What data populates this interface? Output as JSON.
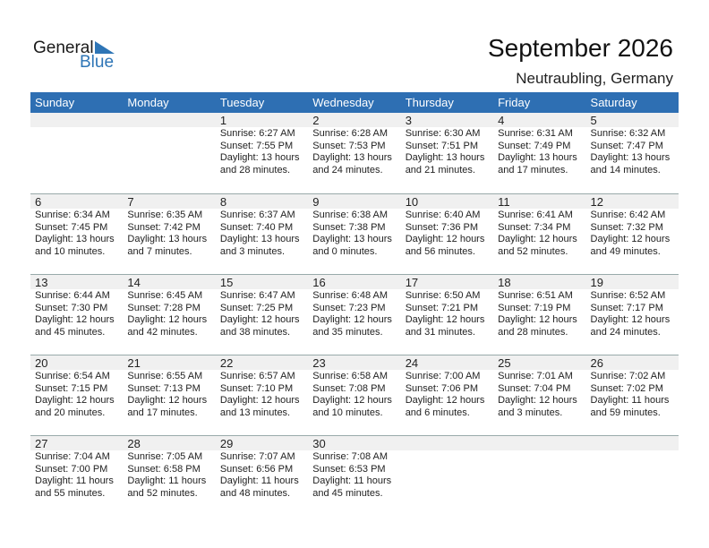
{
  "logo": {
    "general": "General",
    "blue": "Blue"
  },
  "title": "September 2026",
  "location": "Neutraubling, Germany",
  "colors": {
    "header": "#2e6fb3",
    "date_row": "#f0f0f0",
    "logo_blue": "#2e75b6"
  },
  "weekdays": [
    "Sunday",
    "Monday",
    "Tuesday",
    "Wednesday",
    "Thursday",
    "Friday",
    "Saturday"
  ],
  "weeks": [
    [
      null,
      null,
      {
        "day": "1",
        "sunrise": "Sunrise: 6:27 AM",
        "sunset": "Sunset: 7:55 PM",
        "daylight1": "Daylight: 13 hours",
        "daylight2": "and 28 minutes."
      },
      {
        "day": "2",
        "sunrise": "Sunrise: 6:28 AM",
        "sunset": "Sunset: 7:53 PM",
        "daylight1": "Daylight: 13 hours",
        "daylight2": "and 24 minutes."
      },
      {
        "day": "3",
        "sunrise": "Sunrise: 6:30 AM",
        "sunset": "Sunset: 7:51 PM",
        "daylight1": "Daylight: 13 hours",
        "daylight2": "and 21 minutes."
      },
      {
        "day": "4",
        "sunrise": "Sunrise: 6:31 AM",
        "sunset": "Sunset: 7:49 PM",
        "daylight1": "Daylight: 13 hours",
        "daylight2": "and 17 minutes."
      },
      {
        "day": "5",
        "sunrise": "Sunrise: 6:32 AM",
        "sunset": "Sunset: 7:47 PM",
        "daylight1": "Daylight: 13 hours",
        "daylight2": "and 14 minutes."
      }
    ],
    [
      {
        "day": "6",
        "sunrise": "Sunrise: 6:34 AM",
        "sunset": "Sunset: 7:45 PM",
        "daylight1": "Daylight: 13 hours",
        "daylight2": "and 10 minutes."
      },
      {
        "day": "7",
        "sunrise": "Sunrise: 6:35 AM",
        "sunset": "Sunset: 7:42 PM",
        "daylight1": "Daylight: 13 hours",
        "daylight2": "and 7 minutes."
      },
      {
        "day": "8",
        "sunrise": "Sunrise: 6:37 AM",
        "sunset": "Sunset: 7:40 PM",
        "daylight1": "Daylight: 13 hours",
        "daylight2": "and 3 minutes."
      },
      {
        "day": "9",
        "sunrise": "Sunrise: 6:38 AM",
        "sunset": "Sunset: 7:38 PM",
        "daylight1": "Daylight: 13 hours",
        "daylight2": "and 0 minutes."
      },
      {
        "day": "10",
        "sunrise": "Sunrise: 6:40 AM",
        "sunset": "Sunset: 7:36 PM",
        "daylight1": "Daylight: 12 hours",
        "daylight2": "and 56 minutes."
      },
      {
        "day": "11",
        "sunrise": "Sunrise: 6:41 AM",
        "sunset": "Sunset: 7:34 PM",
        "daylight1": "Daylight: 12 hours",
        "daylight2": "and 52 minutes."
      },
      {
        "day": "12",
        "sunrise": "Sunrise: 6:42 AM",
        "sunset": "Sunset: 7:32 PM",
        "daylight1": "Daylight: 12 hours",
        "daylight2": "and 49 minutes."
      }
    ],
    [
      {
        "day": "13",
        "sunrise": "Sunrise: 6:44 AM",
        "sunset": "Sunset: 7:30 PM",
        "daylight1": "Daylight: 12 hours",
        "daylight2": "and 45 minutes."
      },
      {
        "day": "14",
        "sunrise": "Sunrise: 6:45 AM",
        "sunset": "Sunset: 7:28 PM",
        "daylight1": "Daylight: 12 hours",
        "daylight2": "and 42 minutes."
      },
      {
        "day": "15",
        "sunrise": "Sunrise: 6:47 AM",
        "sunset": "Sunset: 7:25 PM",
        "daylight1": "Daylight: 12 hours",
        "daylight2": "and 38 minutes."
      },
      {
        "day": "16",
        "sunrise": "Sunrise: 6:48 AM",
        "sunset": "Sunset: 7:23 PM",
        "daylight1": "Daylight: 12 hours",
        "daylight2": "and 35 minutes."
      },
      {
        "day": "17",
        "sunrise": "Sunrise: 6:50 AM",
        "sunset": "Sunset: 7:21 PM",
        "daylight1": "Daylight: 12 hours",
        "daylight2": "and 31 minutes."
      },
      {
        "day": "18",
        "sunrise": "Sunrise: 6:51 AM",
        "sunset": "Sunset: 7:19 PM",
        "daylight1": "Daylight: 12 hours",
        "daylight2": "and 28 minutes."
      },
      {
        "day": "19",
        "sunrise": "Sunrise: 6:52 AM",
        "sunset": "Sunset: 7:17 PM",
        "daylight1": "Daylight: 12 hours",
        "daylight2": "and 24 minutes."
      }
    ],
    [
      {
        "day": "20",
        "sunrise": "Sunrise: 6:54 AM",
        "sunset": "Sunset: 7:15 PM",
        "daylight1": "Daylight: 12 hours",
        "daylight2": "and 20 minutes."
      },
      {
        "day": "21",
        "sunrise": "Sunrise: 6:55 AM",
        "sunset": "Sunset: 7:13 PM",
        "daylight1": "Daylight: 12 hours",
        "daylight2": "and 17 minutes."
      },
      {
        "day": "22",
        "sunrise": "Sunrise: 6:57 AM",
        "sunset": "Sunset: 7:10 PM",
        "daylight1": "Daylight: 12 hours",
        "daylight2": "and 13 minutes."
      },
      {
        "day": "23",
        "sunrise": "Sunrise: 6:58 AM",
        "sunset": "Sunset: 7:08 PM",
        "daylight1": "Daylight: 12 hours",
        "daylight2": "and 10 minutes."
      },
      {
        "day": "24",
        "sunrise": "Sunrise: 7:00 AM",
        "sunset": "Sunset: 7:06 PM",
        "daylight1": "Daylight: 12 hours",
        "daylight2": "and 6 minutes."
      },
      {
        "day": "25",
        "sunrise": "Sunrise: 7:01 AM",
        "sunset": "Sunset: 7:04 PM",
        "daylight1": "Daylight: 12 hours",
        "daylight2": "and 3 minutes."
      },
      {
        "day": "26",
        "sunrise": "Sunrise: 7:02 AM",
        "sunset": "Sunset: 7:02 PM",
        "daylight1": "Daylight: 11 hours",
        "daylight2": "and 59 minutes."
      }
    ],
    [
      {
        "day": "27",
        "sunrise": "Sunrise: 7:04 AM",
        "sunset": "Sunset: 7:00 PM",
        "daylight1": "Daylight: 11 hours",
        "daylight2": "and 55 minutes."
      },
      {
        "day": "28",
        "sunrise": "Sunrise: 7:05 AM",
        "sunset": "Sunset: 6:58 PM",
        "daylight1": "Daylight: 11 hours",
        "daylight2": "and 52 minutes."
      },
      {
        "day": "29",
        "sunrise": "Sunrise: 7:07 AM",
        "sunset": "Sunset: 6:56 PM",
        "daylight1": "Daylight: 11 hours",
        "daylight2": "and 48 minutes."
      },
      {
        "day": "30",
        "sunrise": "Sunrise: 7:08 AM",
        "sunset": "Sunset: 6:53 PM",
        "daylight1": "Daylight: 11 hours",
        "daylight2": "and 45 minutes."
      },
      null,
      null,
      null
    ]
  ]
}
